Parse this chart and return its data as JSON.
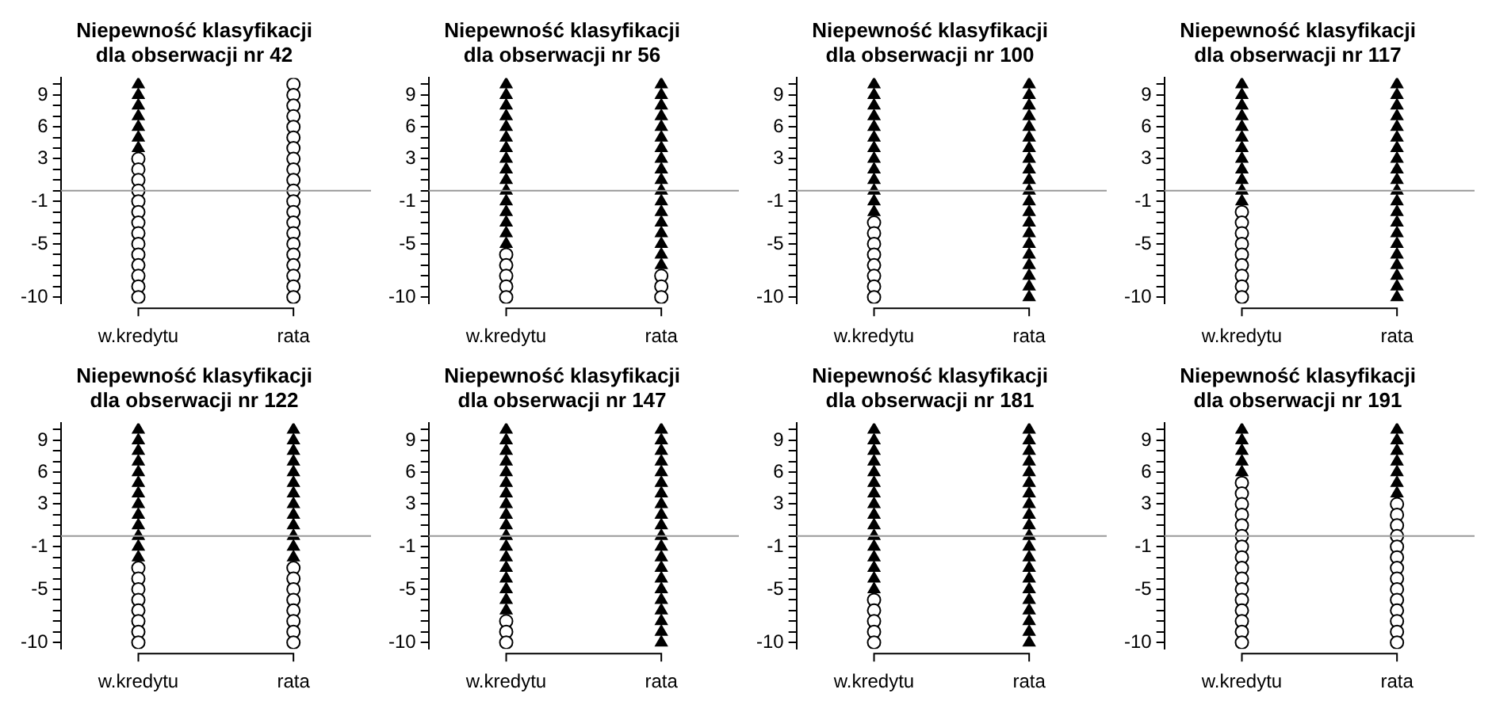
{
  "chart_data": [
    {
      "type": "scatter",
      "title": "Niepewność klasyfikacji\ndla obserwacji nr 42",
      "categories": [
        "w.kredytu",
        "rata"
      ],
      "ylim": [
        -10.6,
        10.6
      ],
      "yticks": [
        -10,
        {
          "value": -9,
          "label": null
        },
        {
          "value": -8,
          "label": null
        },
        {
          "value": -7,
          "label": null
        },
        {
          "value": -6,
          "label": null
        },
        -5,
        {
          "value": -4,
          "label": null
        },
        {
          "value": -3,
          "label": null
        },
        {
          "value": -2,
          "label": null
        },
        -1,
        {
          "value": 0,
          "label": null
        },
        {
          "value": 1,
          "label": null
        },
        {
          "value": 2,
          "label": null
        },
        3,
        {
          "value": 4,
          "label": null
        },
        {
          "value": 5,
          "label": null
        },
        6,
        {
          "value": 7,
          "label": null
        },
        {
          "value": 8,
          "label": null
        },
        9,
        {
          "value": 10,
          "label": null
        }
      ],
      "ref_lines": [
        {
          "axis": "y",
          "value": 0,
          "color": "#999999"
        }
      ],
      "legend": false,
      "series": [
        {
          "marker": "triangle",
          "color": "#000000",
          "x": [
            "w.kredytu",
            "w.kredytu",
            "w.kredytu",
            "w.kredytu",
            "w.kredytu",
            "w.kredytu",
            "w.kredytu"
          ],
          "values": [
            10,
            9,
            8,
            7,
            6,
            5,
            4
          ]
        },
        {
          "marker": "circle",
          "color": "#000000",
          "x": [
            "w.kredytu",
            "w.kredytu",
            "w.kredytu",
            "w.kredytu",
            "w.kredytu",
            "w.kredytu",
            "w.kredytu",
            "w.kredytu",
            "w.kredytu",
            "w.kredytu",
            "w.kredytu",
            "w.kredytu",
            "w.kredytu",
            "w.kredytu",
            "rata",
            "rata",
            "rata",
            "rata",
            "rata",
            "rata",
            "rata",
            "rata",
            "rata",
            "rata",
            "rata",
            "rata",
            "rata",
            "rata",
            "rata",
            "rata",
            "rata",
            "rata",
            "rata",
            "rata",
            "rata"
          ],
          "values": [
            3,
            2,
            1,
            0,
            -1,
            -2,
            -3,
            -4,
            -5,
            -6,
            -7,
            -8,
            -9,
            -10,
            10,
            9,
            8,
            7,
            6,
            5,
            4,
            3,
            2,
            1,
            0,
            -1,
            -2,
            -3,
            -4,
            -5,
            -6,
            -7,
            -8,
            -9,
            -10
          ]
        }
      ]
    },
    {
      "type": "scatter",
      "title": "Niepewność klasyfikacji\ndla obserwacji nr 56",
      "categories": [
        "w.kredytu",
        "rata"
      ],
      "ylim": [
        -10.6,
        10.6
      ],
      "yticks": [
        -10,
        {
          "value": -9,
          "label": null
        },
        {
          "value": -8,
          "label": null
        },
        {
          "value": -7,
          "label": null
        },
        {
          "value": -6,
          "label": null
        },
        -5,
        {
          "value": -4,
          "label": null
        },
        {
          "value": -3,
          "label": null
        },
        {
          "value": -2,
          "label": null
        },
        -1,
        {
          "value": 0,
          "label": null
        },
        {
          "value": 1,
          "label": null
        },
        {
          "value": 2,
          "label": null
        },
        3,
        {
          "value": 4,
          "label": null
        },
        {
          "value": 5,
          "label": null
        },
        6,
        {
          "value": 7,
          "label": null
        },
        {
          "value": 8,
          "label": null
        },
        9,
        {
          "value": 10,
          "label": null
        }
      ],
      "ref_lines": [
        {
          "axis": "y",
          "value": 0,
          "color": "#999999"
        }
      ],
      "legend": false,
      "series": [
        {
          "marker": "triangle",
          "color": "#000000",
          "x": [
            "w.kredytu",
            "w.kredytu",
            "w.kredytu",
            "w.kredytu",
            "w.kredytu",
            "w.kredytu",
            "w.kredytu",
            "w.kredytu",
            "w.kredytu",
            "w.kredytu",
            "w.kredytu",
            "w.kredytu",
            "w.kredytu",
            "w.kredytu",
            "w.kredytu",
            "w.kredytu",
            "rata",
            "rata",
            "rata",
            "rata",
            "rata",
            "rata",
            "rata",
            "rata",
            "rata",
            "rata",
            "rata",
            "rata",
            "rata",
            "rata",
            "rata",
            "rata",
            "rata",
            "rata"
          ],
          "values": [
            10,
            9,
            8,
            7,
            6,
            5,
            4,
            3,
            2,
            1,
            0,
            -1,
            -2,
            -3,
            -4,
            -5,
            10,
            9,
            8,
            7,
            6,
            5,
            4,
            3,
            2,
            1,
            0,
            -1,
            -2,
            -3,
            -4,
            -5,
            -6,
            -7
          ]
        },
        {
          "marker": "circle",
          "color": "#000000",
          "x": [
            "w.kredytu",
            "w.kredytu",
            "w.kredytu",
            "w.kredytu",
            "w.kredytu",
            "rata",
            "rata",
            "rata"
          ],
          "values": [
            -6,
            -7,
            -8,
            -9,
            -10,
            -8,
            -9,
            -10
          ]
        }
      ]
    },
    {
      "type": "scatter",
      "title": "Niepewność klasyfikacji\ndla obserwacji nr 100",
      "categories": [
        "w.kredytu",
        "rata"
      ],
      "ylim": [
        -10.6,
        10.6
      ],
      "yticks": [
        -10,
        {
          "value": -9,
          "label": null
        },
        {
          "value": -8,
          "label": null
        },
        {
          "value": -7,
          "label": null
        },
        {
          "value": -6,
          "label": null
        },
        -5,
        {
          "value": -4,
          "label": null
        },
        {
          "value": -3,
          "label": null
        },
        {
          "value": -2,
          "label": null
        },
        -1,
        {
          "value": 0,
          "label": null
        },
        {
          "value": 1,
          "label": null
        },
        {
          "value": 2,
          "label": null
        },
        3,
        {
          "value": 4,
          "label": null
        },
        {
          "value": 5,
          "label": null
        },
        6,
        {
          "value": 7,
          "label": null
        },
        {
          "value": 8,
          "label": null
        },
        9,
        {
          "value": 10,
          "label": null
        }
      ],
      "ref_lines": [
        {
          "axis": "y",
          "value": 0,
          "color": "#999999"
        }
      ],
      "legend": false,
      "series": [
        {
          "marker": "triangle",
          "color": "#000000",
          "x": [
            "w.kredytu",
            "w.kredytu",
            "w.kredytu",
            "w.kredytu",
            "w.kredytu",
            "w.kredytu",
            "w.kredytu",
            "w.kredytu",
            "w.kredytu",
            "w.kredytu",
            "w.kredytu",
            "w.kredytu",
            "w.kredytu",
            "rata",
            "rata",
            "rata",
            "rata",
            "rata",
            "rata",
            "rata",
            "rata",
            "rata",
            "rata",
            "rata",
            "rata",
            "rata",
            "rata",
            "rata",
            "rata",
            "rata",
            "rata",
            "rata",
            "rata",
            "rata"
          ],
          "values": [
            10,
            9,
            8,
            7,
            6,
            5,
            4,
            3,
            2,
            1,
            0,
            -1,
            -2,
            10,
            9,
            8,
            7,
            6,
            5,
            4,
            3,
            2,
            1,
            0,
            -1,
            -2,
            -3,
            -4,
            -5,
            -6,
            -7,
            -8,
            -9,
            -10
          ]
        },
        {
          "marker": "circle",
          "color": "#000000",
          "x": [
            "w.kredytu",
            "w.kredytu",
            "w.kredytu",
            "w.kredytu",
            "w.kredytu",
            "w.kredytu",
            "w.kredytu",
            "w.kredytu"
          ],
          "values": [
            -3,
            -4,
            -5,
            -6,
            -7,
            -8,
            -9,
            -10
          ]
        }
      ]
    },
    {
      "type": "scatter",
      "title": "Niepewność klasyfikacji\ndla obserwacji nr 117",
      "categories": [
        "w.kredytu",
        "rata"
      ],
      "ylim": [
        -10.6,
        10.6
      ],
      "yticks": [
        -10,
        {
          "value": -9,
          "label": null
        },
        {
          "value": -8,
          "label": null
        },
        {
          "value": -7,
          "label": null
        },
        {
          "value": -6,
          "label": null
        },
        -5,
        {
          "value": -4,
          "label": null
        },
        {
          "value": -3,
          "label": null
        },
        {
          "value": -2,
          "label": null
        },
        -1,
        {
          "value": 0,
          "label": null
        },
        {
          "value": 1,
          "label": null
        },
        {
          "value": 2,
          "label": null
        },
        3,
        {
          "value": 4,
          "label": null
        },
        {
          "value": 5,
          "label": null
        },
        6,
        {
          "value": 7,
          "label": null
        },
        {
          "value": 8,
          "label": null
        },
        9,
        {
          "value": 10,
          "label": null
        }
      ],
      "ref_lines": [
        {
          "axis": "y",
          "value": 0,
          "color": "#999999"
        }
      ],
      "legend": false,
      "series": [
        {
          "marker": "triangle",
          "color": "#000000",
          "x": [
            "w.kredytu",
            "w.kredytu",
            "w.kredytu",
            "w.kredytu",
            "w.kredytu",
            "w.kredytu",
            "w.kredytu",
            "w.kredytu",
            "w.kredytu",
            "w.kredytu",
            "w.kredytu",
            "w.kredytu",
            "rata",
            "rata",
            "rata",
            "rata",
            "rata",
            "rata",
            "rata",
            "rata",
            "rata",
            "rata",
            "rata",
            "rata",
            "rata",
            "rata",
            "rata",
            "rata",
            "rata",
            "rata",
            "rata",
            "rata",
            "rata"
          ],
          "values": [
            10,
            9,
            8,
            7,
            6,
            5,
            4,
            3,
            2,
            1,
            0,
            -1,
            10,
            9,
            8,
            7,
            6,
            5,
            4,
            3,
            2,
            1,
            0,
            -1,
            -2,
            -3,
            -4,
            -5,
            -6,
            -7,
            -8,
            -9,
            -10
          ]
        },
        {
          "marker": "circle",
          "color": "#000000",
          "x": [
            "w.kredytu",
            "w.kredytu",
            "w.kredytu",
            "w.kredytu",
            "w.kredytu",
            "w.kredytu",
            "w.kredytu",
            "w.kredytu",
            "w.kredytu"
          ],
          "values": [
            -2,
            -3,
            -4,
            -5,
            -6,
            -7,
            -8,
            -9,
            -10
          ]
        }
      ]
    },
    {
      "type": "scatter",
      "title": "Niepewność klasyfikacji\ndla obserwacji nr 122",
      "categories": [
        "w.kredytu",
        "rata"
      ],
      "ylim": [
        -10.6,
        10.6
      ],
      "yticks": [
        -10,
        {
          "value": -9,
          "label": null
        },
        {
          "value": -8,
          "label": null
        },
        {
          "value": -7,
          "label": null
        },
        {
          "value": -6,
          "label": null
        },
        -5,
        {
          "value": -4,
          "label": null
        },
        {
          "value": -3,
          "label": null
        },
        {
          "value": -2,
          "label": null
        },
        -1,
        {
          "value": 0,
          "label": null
        },
        {
          "value": 1,
          "label": null
        },
        {
          "value": 2,
          "label": null
        },
        3,
        {
          "value": 4,
          "label": null
        },
        {
          "value": 5,
          "label": null
        },
        6,
        {
          "value": 7,
          "label": null
        },
        {
          "value": 8,
          "label": null
        },
        9,
        {
          "value": 10,
          "label": null
        }
      ],
      "ref_lines": [
        {
          "axis": "y",
          "value": 0,
          "color": "#999999"
        }
      ],
      "legend": false,
      "series": [
        {
          "marker": "triangle",
          "color": "#000000",
          "x": [
            "w.kredytu",
            "w.kredytu",
            "w.kredytu",
            "w.kredytu",
            "w.kredytu",
            "w.kredytu",
            "w.kredytu",
            "w.kredytu",
            "w.kredytu",
            "w.kredytu",
            "w.kredytu",
            "w.kredytu",
            "w.kredytu",
            "rata",
            "rata",
            "rata",
            "rata",
            "rata",
            "rata",
            "rata",
            "rata",
            "rata",
            "rata",
            "rata",
            "rata",
            "rata"
          ],
          "values": [
            10,
            9,
            8,
            7,
            6,
            5,
            4,
            3,
            2,
            1,
            0,
            -1,
            -2,
            10,
            9,
            8,
            7,
            6,
            5,
            4,
            3,
            2,
            1,
            0,
            -1,
            -2
          ]
        },
        {
          "marker": "circle",
          "color": "#000000",
          "x": [
            "w.kredytu",
            "w.kredytu",
            "w.kredytu",
            "w.kredytu",
            "w.kredytu",
            "w.kredytu",
            "w.kredytu",
            "w.kredytu",
            "rata",
            "rata",
            "rata",
            "rata",
            "rata",
            "rata",
            "rata",
            "rata"
          ],
          "values": [
            -3,
            -4,
            -5,
            -6,
            -7,
            -8,
            -9,
            -10,
            -3,
            -4,
            -5,
            -6,
            -7,
            -8,
            -9,
            -10
          ]
        }
      ]
    },
    {
      "type": "scatter",
      "title": "Niepewność klasyfikacji\ndla obserwacji nr 147",
      "categories": [
        "w.kredytu",
        "rata"
      ],
      "ylim": [
        -10.6,
        10.6
      ],
      "yticks": [
        -10,
        {
          "value": -9,
          "label": null
        },
        {
          "value": -8,
          "label": null
        },
        {
          "value": -7,
          "label": null
        },
        {
          "value": -6,
          "label": null
        },
        -5,
        {
          "value": -4,
          "label": null
        },
        {
          "value": -3,
          "label": null
        },
        {
          "value": -2,
          "label": null
        },
        -1,
        {
          "value": 0,
          "label": null
        },
        {
          "value": 1,
          "label": null
        },
        {
          "value": 2,
          "label": null
        },
        3,
        {
          "value": 4,
          "label": null
        },
        {
          "value": 5,
          "label": null
        },
        6,
        {
          "value": 7,
          "label": null
        },
        {
          "value": 8,
          "label": null
        },
        9,
        {
          "value": 10,
          "label": null
        }
      ],
      "ref_lines": [
        {
          "axis": "y",
          "value": 0,
          "color": "#999999"
        }
      ],
      "legend": false,
      "series": [
        {
          "marker": "triangle",
          "color": "#000000",
          "x": [
            "w.kredytu",
            "w.kredytu",
            "w.kredytu",
            "w.kredytu",
            "w.kredytu",
            "w.kredytu",
            "w.kredytu",
            "w.kredytu",
            "w.kredytu",
            "w.kredytu",
            "w.kredytu",
            "w.kredytu",
            "w.kredytu",
            "w.kredytu",
            "w.kredytu",
            "w.kredytu",
            "w.kredytu",
            "w.kredytu",
            "rata",
            "rata",
            "rata",
            "rata",
            "rata",
            "rata",
            "rata",
            "rata",
            "rata",
            "rata",
            "rata",
            "rata",
            "rata",
            "rata",
            "rata",
            "rata",
            "rata",
            "rata",
            "rata",
            "rata",
            "rata"
          ],
          "values": [
            10,
            9,
            8,
            7,
            6,
            5,
            4,
            3,
            2,
            1,
            0,
            -1,
            -2,
            -3,
            -4,
            -5,
            -6,
            -7,
            10,
            9,
            8,
            7,
            6,
            5,
            4,
            3,
            2,
            1,
            0,
            -1,
            -2,
            -3,
            -4,
            -5,
            -6,
            -7,
            -8,
            -9,
            -10
          ]
        },
        {
          "marker": "circle",
          "color": "#000000",
          "x": [
            "w.kredytu",
            "w.kredytu",
            "w.kredytu"
          ],
          "values": [
            -8,
            -9,
            -10
          ]
        }
      ]
    },
    {
      "type": "scatter",
      "title": "Niepewność klasyfikacji\ndla obserwacji nr 181",
      "categories": [
        "w.kredytu",
        "rata"
      ],
      "ylim": [
        -10.6,
        10.6
      ],
      "yticks": [
        -10,
        {
          "value": -9,
          "label": null
        },
        {
          "value": -8,
          "label": null
        },
        {
          "value": -7,
          "label": null
        },
        {
          "value": -6,
          "label": null
        },
        -5,
        {
          "value": -4,
          "label": null
        },
        {
          "value": -3,
          "label": null
        },
        {
          "value": -2,
          "label": null
        },
        -1,
        {
          "value": 0,
          "label": null
        },
        {
          "value": 1,
          "label": null
        },
        {
          "value": 2,
          "label": null
        },
        3,
        {
          "value": 4,
          "label": null
        },
        {
          "value": 5,
          "label": null
        },
        6,
        {
          "value": 7,
          "label": null
        },
        {
          "value": 8,
          "label": null
        },
        9,
        {
          "value": 10,
          "label": null
        }
      ],
      "ref_lines": [
        {
          "axis": "y",
          "value": 0,
          "color": "#999999"
        }
      ],
      "legend": false,
      "series": [
        {
          "marker": "triangle",
          "color": "#000000",
          "x": [
            "w.kredytu",
            "w.kredytu",
            "w.kredytu",
            "w.kredytu",
            "w.kredytu",
            "w.kredytu",
            "w.kredytu",
            "w.kredytu",
            "w.kredytu",
            "w.kredytu",
            "w.kredytu",
            "w.kredytu",
            "w.kredytu",
            "w.kredytu",
            "w.kredytu",
            "w.kredytu",
            "rata",
            "rata",
            "rata",
            "rata",
            "rata",
            "rata",
            "rata",
            "rata",
            "rata",
            "rata",
            "rata",
            "rata",
            "rata",
            "rata",
            "rata",
            "rata",
            "rata",
            "rata",
            "rata",
            "rata",
            "rata"
          ],
          "values": [
            10,
            9,
            8,
            7,
            6,
            5,
            4,
            3,
            2,
            1,
            0,
            -1,
            -2,
            -3,
            -4,
            -5,
            10,
            9,
            8,
            7,
            6,
            5,
            4,
            3,
            2,
            1,
            0,
            -1,
            -2,
            -3,
            -4,
            -5,
            -6,
            -7,
            -8,
            -9,
            -10
          ]
        },
        {
          "marker": "circle",
          "color": "#000000",
          "x": [
            "w.kredytu",
            "w.kredytu",
            "w.kredytu",
            "w.kredytu",
            "w.kredytu"
          ],
          "values": [
            -6,
            -7,
            -8,
            -9,
            -10
          ]
        }
      ]
    },
    {
      "type": "scatter",
      "title": "Niepewność klasyfikacji\ndla obserwacji nr 191",
      "categories": [
        "w.kredytu",
        "rata"
      ],
      "ylim": [
        -10.6,
        10.6
      ],
      "yticks": [
        -10,
        {
          "value": -9,
          "label": null
        },
        {
          "value": -8,
          "label": null
        },
        {
          "value": -7,
          "label": null
        },
        {
          "value": -6,
          "label": null
        },
        -5,
        {
          "value": -4,
          "label": null
        },
        {
          "value": -3,
          "label": null
        },
        {
          "value": -2,
          "label": null
        },
        -1,
        {
          "value": 0,
          "label": null
        },
        {
          "value": 1,
          "label": null
        },
        {
          "value": 2,
          "label": null
        },
        3,
        {
          "value": 4,
          "label": null
        },
        {
          "value": 5,
          "label": null
        },
        6,
        {
          "value": 7,
          "label": null
        },
        {
          "value": 8,
          "label": null
        },
        9,
        {
          "value": 10,
          "label": null
        }
      ],
      "ref_lines": [
        {
          "axis": "y",
          "value": 0,
          "color": "#999999"
        }
      ],
      "legend": false,
      "series": [
        {
          "marker": "triangle",
          "color": "#000000",
          "x": [
            "w.kredytu",
            "w.kredytu",
            "w.kredytu",
            "w.kredytu",
            "w.kredytu",
            "rata",
            "rata",
            "rata",
            "rata",
            "rata",
            "rata",
            "rata"
          ],
          "values": [
            10,
            9,
            8,
            7,
            6,
            10,
            9,
            8,
            7,
            6,
            5,
            4
          ]
        },
        {
          "marker": "circle",
          "color": "#000000",
          "x": [
            "w.kredytu",
            "w.kredytu",
            "w.kredytu",
            "w.kredytu",
            "w.kredytu",
            "w.kredytu",
            "w.kredytu",
            "w.kredytu",
            "w.kredytu",
            "w.kredytu",
            "w.kredytu",
            "w.kredytu",
            "w.kredytu",
            "w.kredytu",
            "w.kredytu",
            "w.kredytu",
            "rata",
            "rata",
            "rata",
            "rata",
            "rata",
            "rata",
            "rata",
            "rata",
            "rata",
            "rata",
            "rata",
            "rata",
            "rata",
            "rata"
          ],
          "values": [
            5,
            4,
            3,
            2,
            1,
            0,
            -1,
            -2,
            -3,
            -4,
            -5,
            -6,
            -7,
            -8,
            -9,
            -10,
            3,
            2,
            1,
            0,
            -1,
            -2,
            -3,
            -4,
            -5,
            -6,
            -7,
            -8,
            -9,
            -10
          ]
        }
      ]
    }
  ]
}
